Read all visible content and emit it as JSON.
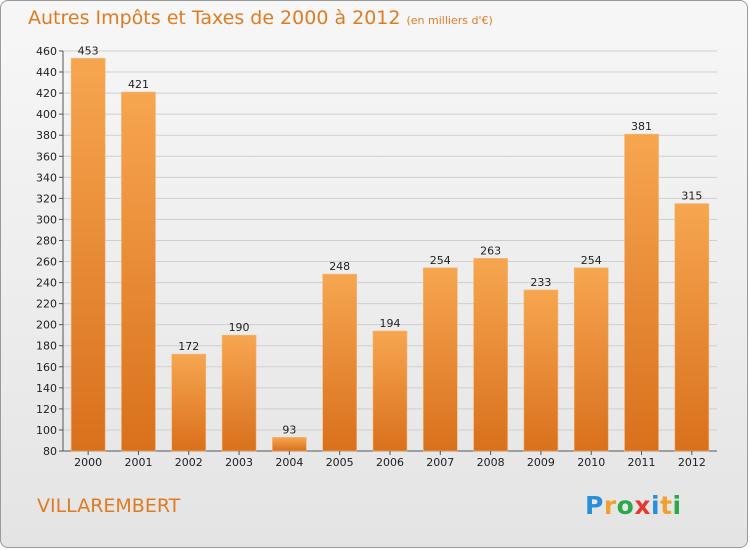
{
  "header": {
    "title": "Autres Impôts et Taxes de 2000 à 2012",
    "subtitle": "(en milliers d'€)"
  },
  "commune": "VILLAREMBERT",
  "logo": {
    "letters": [
      {
        "ch": "P",
        "color": "#2a8fd6"
      },
      {
        "ch": "r",
        "color": "#f0a030"
      },
      {
        "ch": "o",
        "color": "#2aa84a"
      },
      {
        "ch": "x",
        "color": "#e53935"
      },
      {
        "ch": "i",
        "color": "#2a8fd6"
      },
      {
        "ch": "t",
        "color": "#f0a030"
      },
      {
        "ch": "i",
        "color": "#2aa84a"
      }
    ]
  },
  "colors": {
    "bar_top": "#f7a650",
    "bar_bottom": "#d9701c",
    "accent": "#e07b22"
  },
  "chart_data": {
    "type": "bar",
    "title": "Autres Impôts et Taxes de 2000 à 2012",
    "subtitle": "(en milliers d'€)",
    "categories": [
      "2000",
      "2001",
      "2002",
      "2003",
      "2004",
      "2005",
      "2006",
      "2007",
      "2008",
      "2009",
      "2010",
      "2011",
      "2012"
    ],
    "values": [
      453,
      421,
      172,
      190,
      93,
      248,
      194,
      254,
      263,
      233,
      254,
      381,
      315
    ],
    "ylim": [
      80,
      460
    ],
    "yticks": [
      80,
      100,
      120,
      140,
      160,
      180,
      200,
      220,
      240,
      260,
      280,
      300,
      320,
      340,
      360,
      380,
      400,
      420,
      440,
      460
    ],
    "grid": true,
    "data_labels": true
  }
}
